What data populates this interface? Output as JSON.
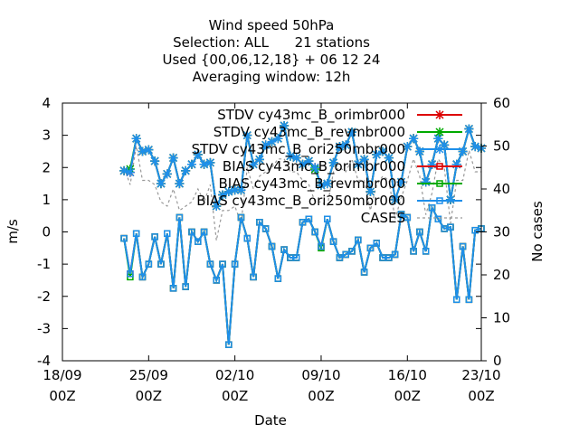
{
  "chart_data": {
    "type": "line",
    "title_lines": [
      "Wind speed 50hPa",
      "Selection: ALL      21 stations",
      "Used {00,06,12,18} + 06 12 24",
      "Averaging window: 12h"
    ],
    "xlabel": "Date",
    "ylabel": "m/s",
    "y2label": "No cases",
    "ylim": [
      -4,
      4
    ],
    "y2lim": [
      0,
      60
    ],
    "xlim": [
      0,
      34
    ],
    "x_ticks": [
      {
        "x": 0,
        "l1": "18/09",
        "l2": "00Z"
      },
      {
        "x": 7,
        "l1": "25/09",
        "l2": "00Z"
      },
      {
        "x": 14,
        "l1": "02/10",
        "l2": "00Z"
      },
      {
        "x": 21,
        "l1": "09/10",
        "l2": "00Z"
      },
      {
        "x": 28,
        "l1": "16/10",
        "l2": "00Z"
      },
      {
        "x": 34,
        "l1": "23/10",
        "l2": "00Z"
      }
    ],
    "y_ticks": [
      -4,
      -3,
      -2,
      -1,
      0,
      1,
      2,
      3,
      4
    ],
    "y2_ticks": [
      0,
      10,
      20,
      30,
      40,
      50,
      60
    ],
    "grid": false,
    "legend_position": "top-right",
    "x": [
      5.0,
      5.5,
      6.0,
      6.5,
      7.0,
      7.5,
      8.0,
      8.5,
      9.0,
      9.5,
      10.0,
      10.5,
      11.0,
      11.5,
      12.0,
      12.5,
      13.0,
      13.5,
      14.0,
      14.5,
      15.0,
      15.5,
      16.0,
      16.5,
      17.0,
      17.5,
      18.0,
      18.5,
      19.0,
      19.5,
      20.0,
      20.5,
      21.0,
      21.5,
      22.0,
      22.5,
      23.0,
      23.5,
      24.0,
      24.5,
      25.0,
      25.5,
      26.0,
      26.5,
      27.0,
      27.5,
      28.0,
      28.5,
      29.0,
      29.5,
      30.0,
      30.5,
      31.0,
      31.5,
      32.0,
      32.5,
      33.0,
      33.5,
      34.0
    ],
    "series": [
      {
        "name": "STDV cy43mc_B_orimbr000",
        "color": "#dd0000",
        "style": "stdv",
        "values": [
          1.9,
          1.85,
          2.9,
          2.5,
          2.55,
          2.2,
          1.5,
          1.8,
          2.3,
          1.5,
          1.9,
          2.1,
          2.4,
          2.1,
          2.15,
          0.8,
          1.15,
          1.25,
          1.3,
          1.3,
          3.0,
          2.1,
          2.25,
          2.7,
          2.8,
          2.9,
          3.3,
          2.35,
          2.3,
          2.1,
          2.2,
          2.0,
          1.45,
          1.5,
          2.15,
          2.65,
          2.7,
          3.1,
          2.1,
          2.25,
          1.25,
          2.4,
          2.5,
          2.3,
          1.0,
          1.55,
          2.65,
          2.9,
          2.5,
          1.55,
          2.1,
          2.9,
          2.7,
          1.0,
          2.1,
          2.5,
          3.2,
          2.65,
          2.6
        ]
      },
      {
        "name": "STDV cy43mc_B_revmbr000",
        "color": "#00aa00",
        "style": "stdv",
        "values": [
          1.9,
          1.95,
          2.9,
          2.5,
          2.55,
          2.2,
          1.5,
          1.8,
          2.3,
          1.5,
          1.9,
          2.1,
          2.4,
          2.1,
          2.15,
          0.8,
          1.15,
          1.25,
          1.3,
          1.3,
          3.0,
          2.1,
          2.25,
          2.7,
          2.8,
          2.9,
          3.3,
          2.35,
          2.3,
          2.1,
          2.2,
          1.95,
          1.45,
          1.5,
          2.15,
          2.65,
          2.7,
          3.1,
          2.1,
          2.25,
          1.25,
          2.4,
          2.5,
          2.3,
          1.0,
          1.55,
          2.65,
          2.9,
          2.5,
          1.55,
          2.1,
          2.9,
          2.7,
          1.0,
          2.1,
          2.5,
          3.2,
          2.65,
          2.6
        ]
      },
      {
        "name": "STDV cy43mc_B_ori250mbr000",
        "color": "#1e8fea",
        "style": "stdv",
        "values": [
          1.9,
          1.85,
          2.9,
          2.5,
          2.55,
          2.2,
          1.5,
          1.8,
          2.3,
          1.5,
          1.9,
          2.1,
          2.4,
          2.1,
          2.15,
          0.8,
          1.15,
          1.25,
          1.3,
          1.3,
          3.0,
          2.1,
          2.25,
          2.7,
          2.8,
          2.9,
          3.3,
          2.35,
          2.3,
          2.1,
          2.2,
          2.0,
          1.45,
          1.5,
          2.15,
          2.65,
          2.7,
          3.1,
          2.1,
          2.25,
          1.25,
          2.4,
          2.5,
          2.3,
          1.0,
          1.55,
          2.65,
          2.9,
          2.5,
          1.55,
          2.1,
          2.9,
          2.7,
          1.0,
          2.1,
          2.5,
          3.2,
          2.65,
          2.6
        ]
      },
      {
        "name": "BIAS cy43mc_B_orimbr000",
        "color": "#dd0000",
        "style": "bias",
        "values": [
          -0.2,
          -1.3,
          -0.05,
          -1.4,
          -1.0,
          -0.15,
          -1.0,
          -0.05,
          -1.75,
          0.45,
          -1.7,
          0.0,
          -0.3,
          0.0,
          -1.0,
          -1.5,
          -1.0,
          -3.5,
          -1.0,
          0.45,
          -0.2,
          -1.4,
          0.3,
          0.1,
          -0.45,
          -1.45,
          -0.55,
          -0.8,
          -0.8,
          0.3,
          0.4,
          0.0,
          -0.45,
          0.4,
          -0.3,
          -0.8,
          -0.7,
          -0.6,
          -0.25,
          -1.25,
          -0.5,
          -0.35,
          -0.8,
          -0.8,
          -0.7,
          0.55,
          0.45,
          -0.6,
          0.0,
          -0.6,
          0.75,
          0.4,
          0.1,
          0.15,
          -2.1,
          -0.45,
          -2.1,
          0.05,
          0.1
        ]
      },
      {
        "name": "BIAS cy43mc_B_revmbr000",
        "color": "#00aa00",
        "style": "bias",
        "values": [
          -0.2,
          -1.4,
          -0.05,
          -1.4,
          -1.0,
          -0.15,
          -1.0,
          -0.05,
          -1.75,
          0.45,
          -1.7,
          0.0,
          -0.3,
          0.0,
          -1.0,
          -1.5,
          -1.0,
          -3.5,
          -1.0,
          0.45,
          -0.2,
          -1.4,
          0.3,
          0.1,
          -0.45,
          -1.45,
          -0.55,
          -0.8,
          -0.8,
          0.3,
          0.4,
          0.0,
          -0.5,
          0.4,
          -0.3,
          -0.8,
          -0.7,
          -0.6,
          -0.25,
          -1.25,
          -0.5,
          -0.35,
          -0.8,
          -0.8,
          -0.7,
          0.55,
          0.45,
          -0.6,
          0.0,
          -0.6,
          0.75,
          0.4,
          0.1,
          0.15,
          -2.1,
          -0.45,
          -2.1,
          0.05,
          0.1
        ]
      },
      {
        "name": "BIAS cy43mc_B_ori250mbr000",
        "color": "#1e8fea",
        "style": "bias",
        "values": [
          -0.2,
          -1.3,
          -0.05,
          -1.4,
          -1.0,
          -0.15,
          -1.0,
          -0.05,
          -1.75,
          0.45,
          -1.7,
          0.0,
          -0.3,
          0.0,
          -1.0,
          -1.5,
          -1.0,
          -3.5,
          -1.0,
          0.45,
          -0.2,
          -1.4,
          0.3,
          0.1,
          -0.45,
          -1.45,
          -0.55,
          -0.8,
          -0.8,
          0.3,
          0.4,
          0.0,
          -0.45,
          0.4,
          -0.3,
          -0.8,
          -0.7,
          -0.6,
          -0.25,
          -1.25,
          -0.5,
          -0.35,
          -0.8,
          -0.8,
          -0.7,
          0.55,
          0.45,
          -0.6,
          0.0,
          -0.6,
          0.75,
          0.4,
          0.1,
          0.15,
          -2.1,
          -0.45,
          -2.1,
          0.05,
          0.1
        ]
      },
      {
        "name": "CASES",
        "color": "#999999",
        "style": "cases",
        "axis": "y2",
        "values": [
          45,
          41,
          50,
          42,
          42,
          41,
          37,
          36,
          40,
          35,
          36,
          37,
          40,
          37,
          41,
          28,
          35,
          35,
          36,
          32,
          45,
          40,
          43,
          44,
          45,
          47,
          47,
          44,
          44,
          42,
          41,
          37,
          37,
          36,
          44,
          45,
          44,
          47,
          42,
          42,
          35,
          41,
          43,
          42,
          33,
          38,
          42,
          47,
          43,
          34,
          39,
          47,
          45,
          32,
          42,
          42,
          49,
          44,
          44
        ]
      }
    ]
  }
}
